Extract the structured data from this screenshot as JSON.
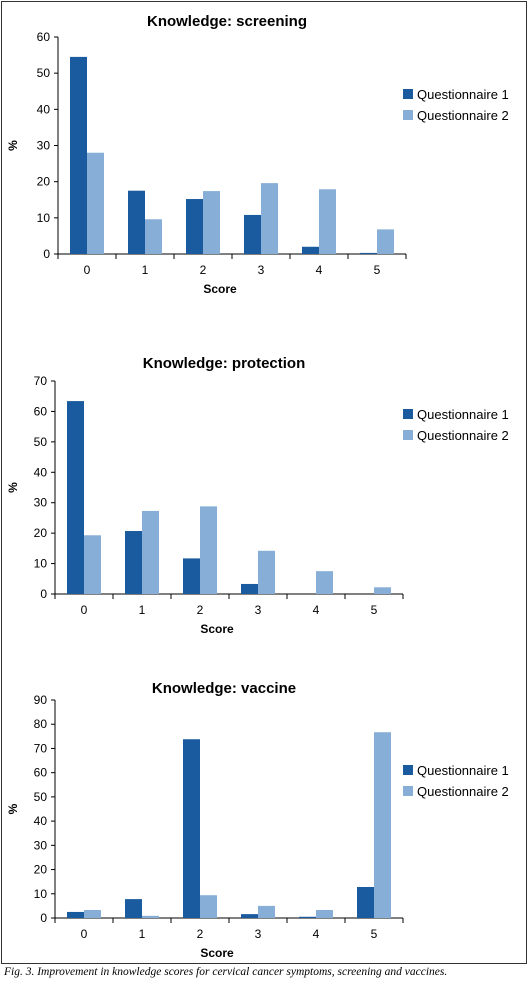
{
  "caption": "Fig. 3. Improvement in knowledge scores for cervical cancer symptoms, screening and vaccines.",
  "colors": {
    "questionnaire_1": "#1a5a9e",
    "questionnaire_2": "#86aed6"
  },
  "chart_data": [
    {
      "type": "bar",
      "title": "Knowledge: screening",
      "xlabel": "Score",
      "ylabel": "%",
      "ylim": [
        0,
        60
      ],
      "yticks": [
        0,
        10,
        20,
        30,
        40,
        50,
        60
      ],
      "categories": [
        "0",
        "1",
        "2",
        "3",
        "4",
        "5"
      ],
      "legend_position": "right",
      "series": [
        {
          "name": "Questionnaire 1",
          "values": [
            54.5,
            17.5,
            15.2,
            10.8,
            2.0,
            0.3
          ]
        },
        {
          "name": "Questionnaire 2",
          "values": [
            28.0,
            9.6,
            17.4,
            19.6,
            17.9,
            6.8
          ]
        }
      ]
    },
    {
      "type": "bar",
      "title": "Knowledge: protection",
      "xlabel": "Score",
      "ylabel": "%",
      "ylim": [
        0,
        70
      ],
      "yticks": [
        0,
        10,
        20,
        30,
        40,
        50,
        60,
        70
      ],
      "categories": [
        "0",
        "1",
        "2",
        "3",
        "4",
        "5"
      ],
      "legend_position": "right",
      "series": [
        {
          "name": "Questionnaire 1",
          "values": [
            63.4,
            20.7,
            11.7,
            3.3,
            0,
            0
          ]
        },
        {
          "name": "Questionnaire 2",
          "values": [
            19.3,
            27.3,
            28.8,
            14.2,
            7.5,
            2.2
          ]
        }
      ]
    },
    {
      "type": "bar",
      "title": "Knowledge: vaccine",
      "xlabel": "Score",
      "ylabel": "%",
      "ylim": [
        0,
        90
      ],
      "yticks": [
        0,
        10,
        20,
        30,
        40,
        50,
        60,
        70,
        80,
        90
      ],
      "categories": [
        "0",
        "1",
        "2",
        "3",
        "4",
        "5"
      ],
      "legend_position": "right",
      "series": [
        {
          "name": "Questionnaire 1",
          "values": [
            2.5,
            7.8,
            73.8,
            1.6,
            0.5,
            12.8
          ]
        },
        {
          "name": "Questionnaire 2",
          "values": [
            3.3,
            0.9,
            9.4,
            5.0,
            3.3,
            76.7
          ]
        }
      ]
    }
  ]
}
